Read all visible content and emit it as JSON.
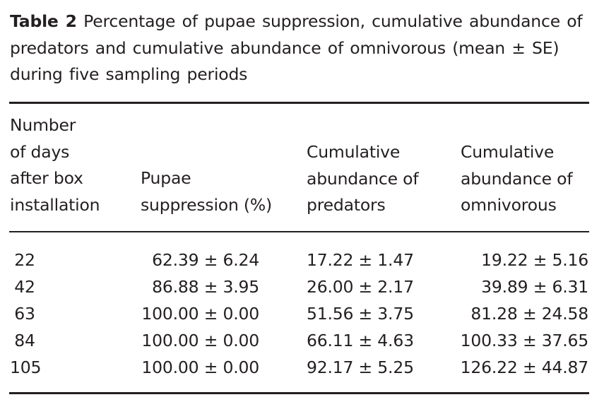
{
  "caption": {
    "label": "Table 2",
    "text": "Percentage of pupae suppression, cumulative abundance of predators and cumulative abundance of omnivorous (mean ± SE) during five sampling periods"
  },
  "headers": {
    "days": [
      "Number",
      "of days",
      "after box",
      "installation"
    ],
    "pupae": [
      "Pupae",
      "suppression (%)"
    ],
    "predators": [
      "Cumulative",
      "abundance of",
      "predators"
    ],
    "omnivorous": [
      "Cumulative",
      "abundance of",
      "omnivorous"
    ]
  },
  "rows": [
    {
      "days": "22",
      "pupae": "62.39 ± 6.24",
      "predators": "17.22 ± 1.47",
      "omnivorous": "19.22 ± 5.16"
    },
    {
      "days": "42",
      "pupae": "86.88 ± 3.95",
      "predators": "26.00 ± 2.17",
      "omnivorous": "39.89 ± 6.31"
    },
    {
      "days": "63",
      "pupae": "100.00 ± 0.00",
      "predators": "51.56 ± 3.75",
      "omnivorous": "81.28 ± 24.58"
    },
    {
      "days": "84",
      "pupae": "100.00 ± 0.00",
      "predators": "66.11 ± 4.63",
      "omnivorous": "100.33 ± 37.65"
    },
    {
      "days": "105",
      "pupae": "100.00 ± 0.00",
      "predators": "92.17 ± 5.25",
      "omnivorous": "126.22 ± 44.87"
    }
  ]
}
